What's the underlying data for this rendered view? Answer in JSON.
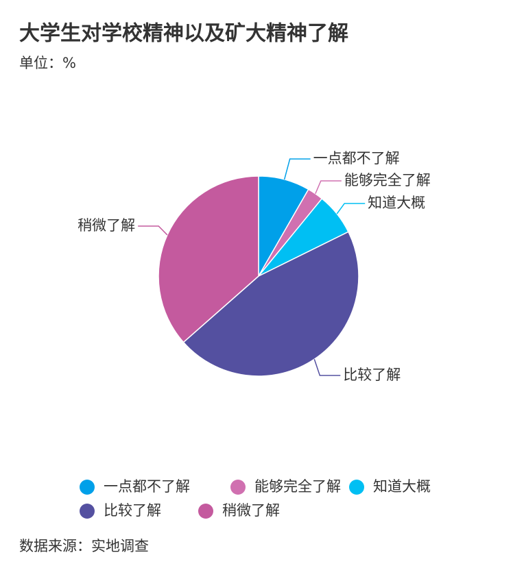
{
  "chart_data": {
    "type": "pie",
    "title": "大学生对学校精神以及矿大精神了解",
    "subtitle": "单位：%",
    "source": "数据来源：实地调查",
    "categories": [
      "一点都不了解",
      "能够完全了解",
      "知道大概",
      "比较了解",
      "稍微了解"
    ],
    "values": [
      8.3,
      2.6,
      6.8,
      45.8,
      36.5
    ],
    "colors": [
      "#00a0e9",
      "#d070b0",
      "#00bff3",
      "#5450a0",
      "#c45a9e"
    ]
  }
}
